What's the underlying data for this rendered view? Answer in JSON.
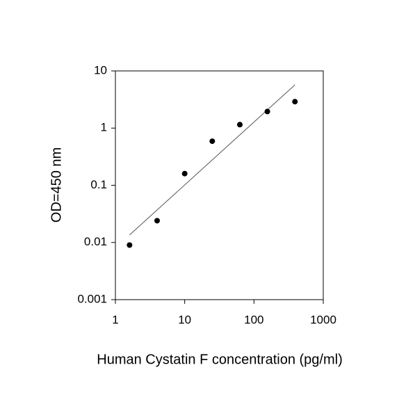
{
  "chart_data": {
    "type": "scatter",
    "x_label": "Human Cystatin F concentration (pg/ml)",
    "y_label": "OD=450 nm",
    "x": [
      1.6,
      4,
      10,
      25,
      62.5,
      156,
      390
    ],
    "values": [
      0.009,
      0.024,
      0.16,
      0.59,
      1.15,
      1.95,
      2.9
    ],
    "color": "#000000",
    "fit": {
      "x": [
        1.6,
        390
      ],
      "y": [
        0.0135,
        5.7
      ],
      "color": "#555555"
    },
    "xlim": [
      1,
      1000
    ],
    "ylim": [
      0.001,
      10
    ],
    "xticks": [
      1,
      10,
      100,
      1000
    ],
    "yticks": [
      0.001,
      0.01,
      0.1,
      1,
      10
    ],
    "xscale": "log",
    "yscale": "log",
    "grid": false
  }
}
